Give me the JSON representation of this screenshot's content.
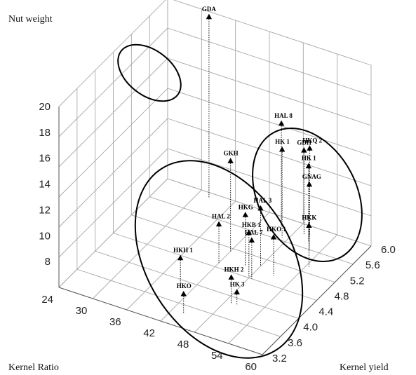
{
  "chart_data": {
    "type": "scatter3d",
    "zlabel": "Nut weight",
    "xlabel": "Kernel Ratio",
    "ylabel": "Kernel yield",
    "z_ticks": [
      "8",
      "10",
      "12",
      "14",
      "16",
      "18",
      "20"
    ],
    "x_ticks": [
      "24",
      "30",
      "36",
      "42",
      "48",
      "54",
      "60"
    ],
    "y_ticks": [
      "3.2",
      "3.6",
      "4.0",
      "4.4",
      "4.8",
      "5.2",
      "5.6",
      "6.0"
    ],
    "xlim": [
      24,
      60
    ],
    "ylim": [
      3.2,
      6.0
    ],
    "zlim": [
      6,
      20
    ],
    "grid": true,
    "marker": "triangle",
    "points": [
      {
        "label": "GDA",
        "x": 32.0,
        "y": 5.9,
        "z": 20.0
      },
      {
        "label": "GKH",
        "x": 42.0,
        "y": 5.0,
        "z": 13.0
      },
      {
        "label": "HAL 3",
        "x": 48.0,
        "y": 4.9,
        "z": 10.5
      },
      {
        "label": "HKG",
        "x": 46.0,
        "y": 4.8,
        "z": 10.0
      },
      {
        "label": "HKB 1",
        "x": 48.0,
        "y": 4.6,
        "z": 9.5
      },
      {
        "label": "HAL 2",
        "x": 42.0,
        "y": 4.7,
        "z": 9.0
      },
      {
        "label": "HAL 7",
        "x": 48.5,
        "y": 4.6,
        "z": 9.0
      },
      {
        "label": "HKO 1",
        "x": 51.0,
        "y": 4.8,
        "z": 9.0
      },
      {
        "label": "HKH 1",
        "x": 40.0,
        "y": 4.0,
        "z": 8.2
      },
      {
        "label": "HKH 2",
        "x": 49.0,
        "y": 4.0,
        "z": 8.0
      },
      {
        "label": "HK 3",
        "x": 50.0,
        "y": 4.0,
        "z": 7.0
      },
      {
        "label": "HKO",
        "x": 44.0,
        "y": 3.5,
        "z": 7.5
      },
      {
        "label": "HAL 8",
        "x": 45.5,
        "y": 5.8,
        "z": 14.0
      },
      {
        "label": "HK 1",
        "x": 47.0,
        "y": 5.6,
        "z": 12.8
      },
      {
        "label": "GDH",
        "x": 49.5,
        "y": 5.8,
        "z": 12.5
      },
      {
        "label": "HKQ 2",
        "x": 50.5,
        "y": 5.8,
        "z": 12.8
      },
      {
        "label": "HK 1",
        "x": 51.0,
        "y": 5.7,
        "z": 11.8
      },
      {
        "label": "GNAG",
        "x": 52.5,
        "y": 5.5,
        "z": 11.2
      },
      {
        "label": "HKK",
        "x": 54.5,
        "y": 5.2,
        "z": 9.2
      }
    ]
  }
}
